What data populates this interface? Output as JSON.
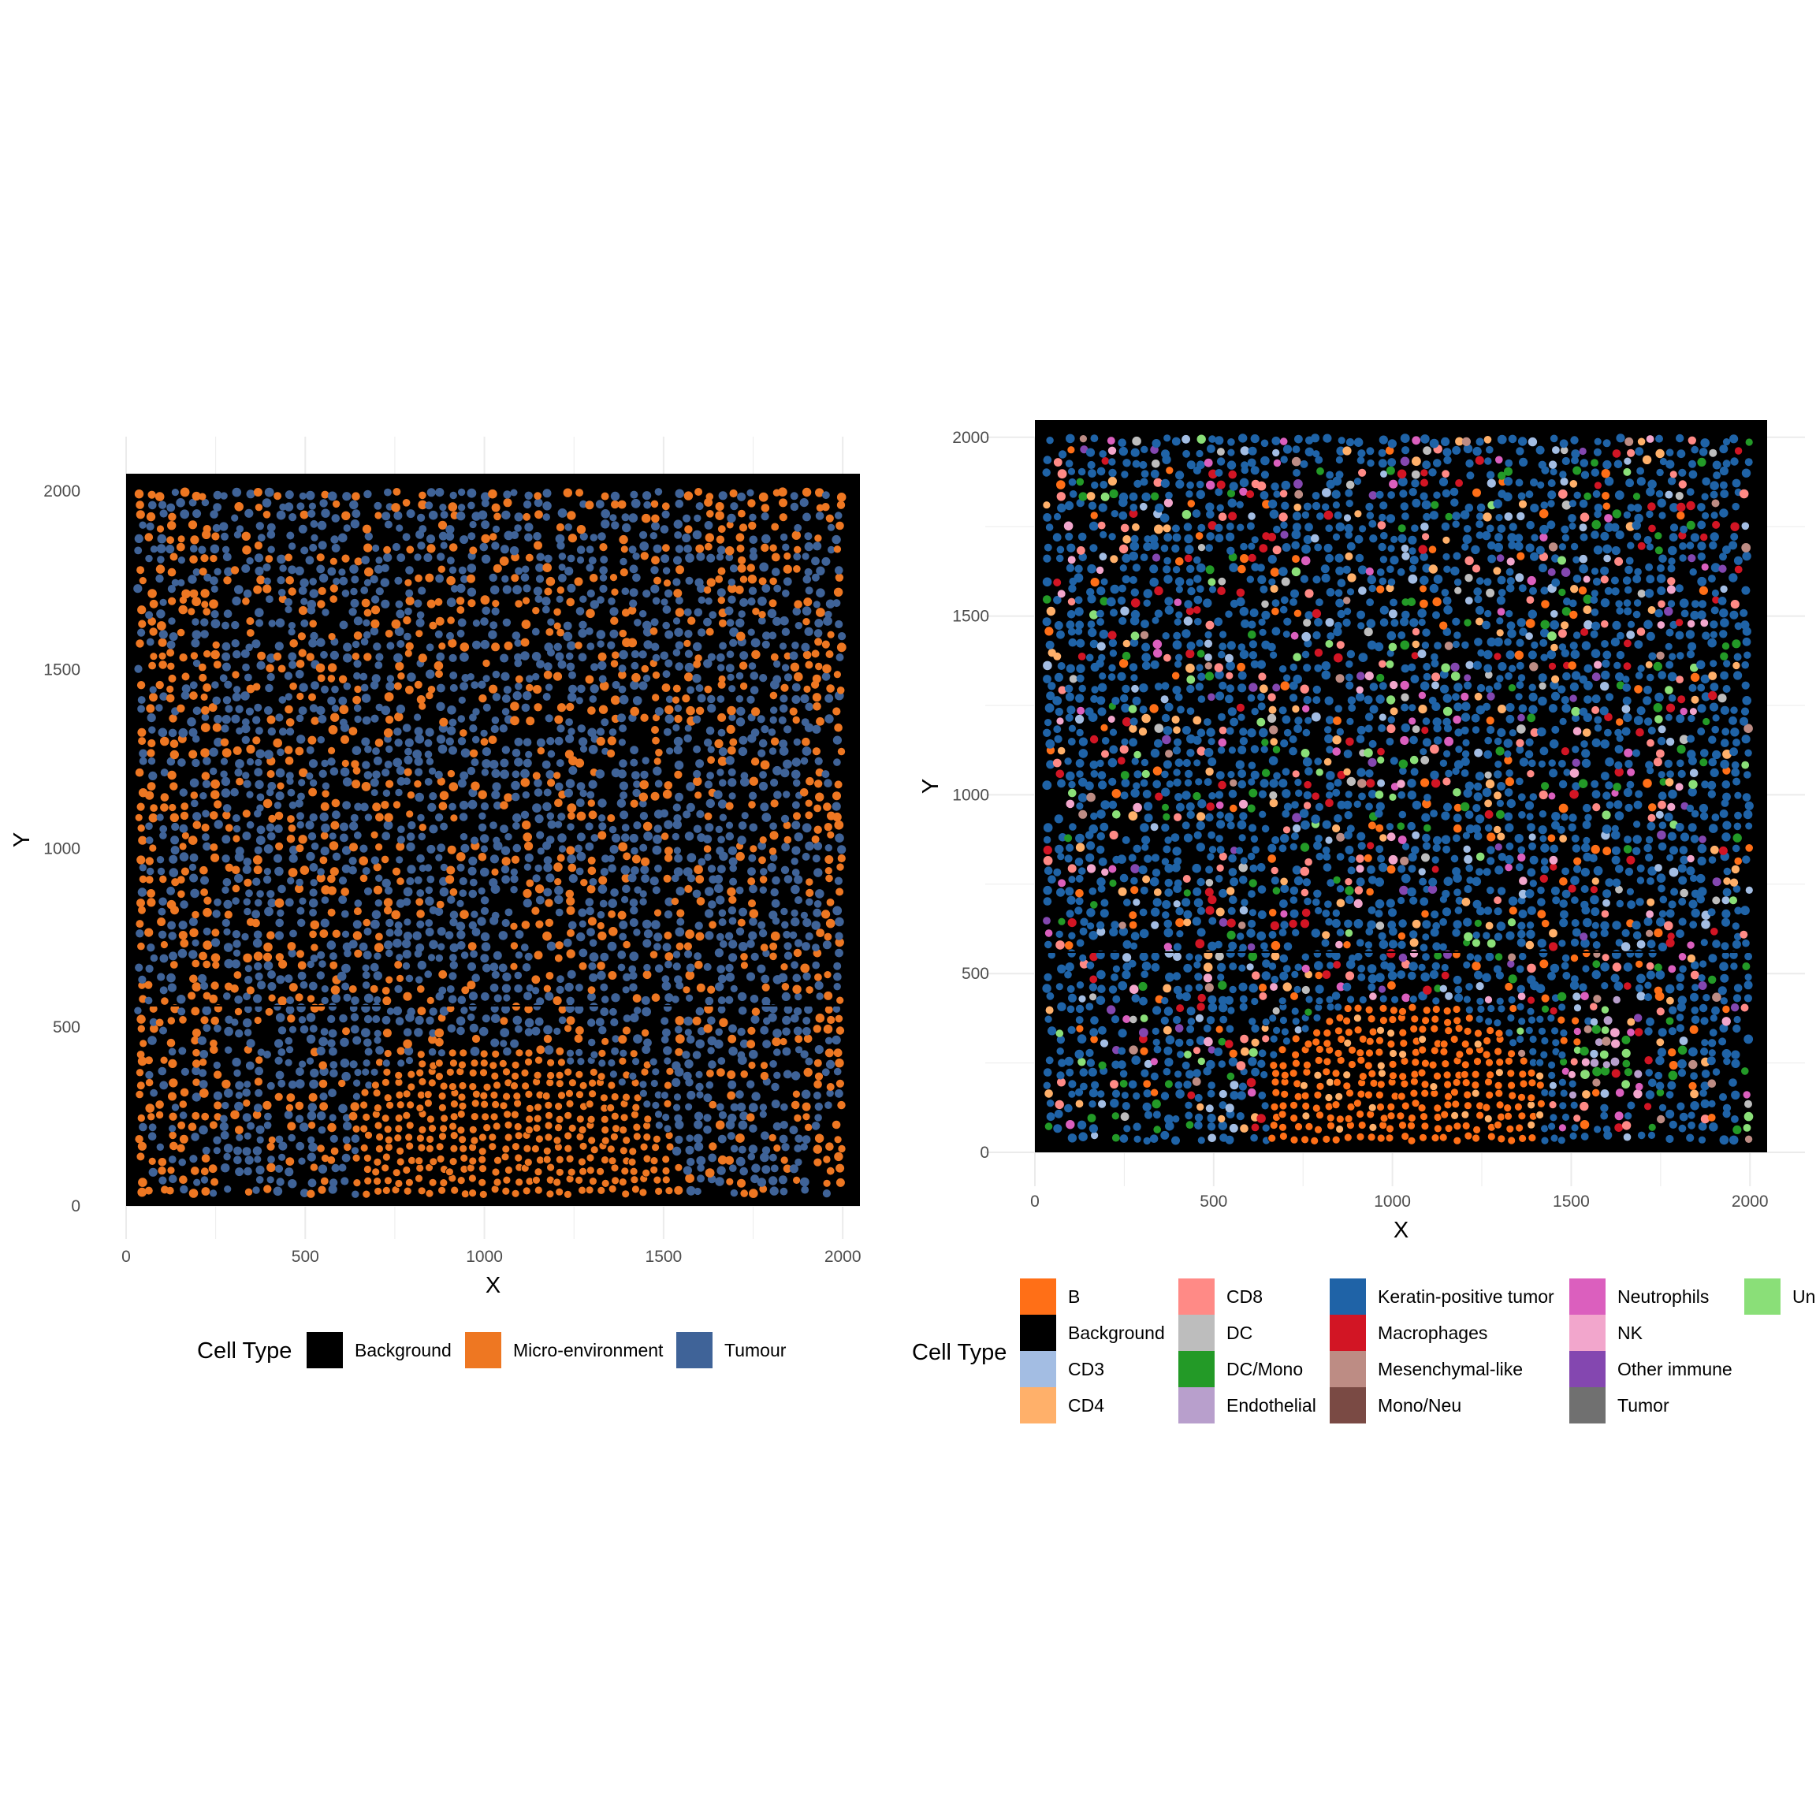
{
  "chart_data": [
    {
      "type": "scatter",
      "title": "",
      "xlabel": "X",
      "ylabel": "Y",
      "xlim": [
        0,
        2048
      ],
      "ylim": [
        0,
        2048
      ],
      "x_ticks": [
        "0",
        "500",
        "1000",
        "1500",
        "2000"
      ],
      "y_ticks": [
        "0",
        "500",
        "1000",
        "1500",
        "2000"
      ],
      "grid": true,
      "background": "#000000",
      "legend": {
        "title": "Cell Type",
        "placement": "bottom",
        "entries": [
          {
            "label": "Background",
            "color": "#000000"
          },
          {
            "label": "Micro-environment",
            "color": "#EE7722"
          },
          {
            "label": "Tumour",
            "color": "#3F6398"
          }
        ]
      }
    },
    {
      "type": "scatter",
      "title": "",
      "xlabel": "X",
      "ylabel": "Y",
      "xlim": [
        0,
        2048
      ],
      "ylim": [
        0,
        2048
      ],
      "x_ticks": [
        "0",
        "500",
        "1000",
        "1500",
        "2000"
      ],
      "y_ticks": [
        "0",
        "500",
        "1000",
        "1500",
        "2000"
      ],
      "grid": true,
      "background": "#000000",
      "legend": {
        "title": "Cell Type",
        "placement": "bottom",
        "entries": [
          {
            "label": "B",
            "color": "#FF6F17"
          },
          {
            "label": "Background",
            "color": "#000000"
          },
          {
            "label": "CD3",
            "color": "#A3BDE3"
          },
          {
            "label": "CD4",
            "color": "#FFB06A"
          },
          {
            "label": "CD8",
            "color": "#FF8A86"
          },
          {
            "label": "DC",
            "color": "#BDBDBD"
          },
          {
            "label": "DC/Mono",
            "color": "#239A27"
          },
          {
            "label": "Endothelial",
            "color": "#B89FCC"
          },
          {
            "label": "Keratin-positive tumor",
            "color": "#1F63A7"
          },
          {
            "label": "Macrophages",
            "color": "#D21524"
          },
          {
            "label": "Mesenchymal-like",
            "color": "#BD8C84"
          },
          {
            "label": "Mono/Neu",
            "color": "#7A4A44"
          },
          {
            "label": "Neutrophils",
            "color": "#DB5FBE"
          },
          {
            "label": "NK",
            "color": "#F2A6CC"
          },
          {
            "label": "Other immune",
            "color": "#8447B0"
          },
          {
            "label": "Tumor",
            "color": "#707070"
          },
          {
            "label": "Un",
            "color": "#8ADF78"
          }
        ]
      }
    }
  ]
}
